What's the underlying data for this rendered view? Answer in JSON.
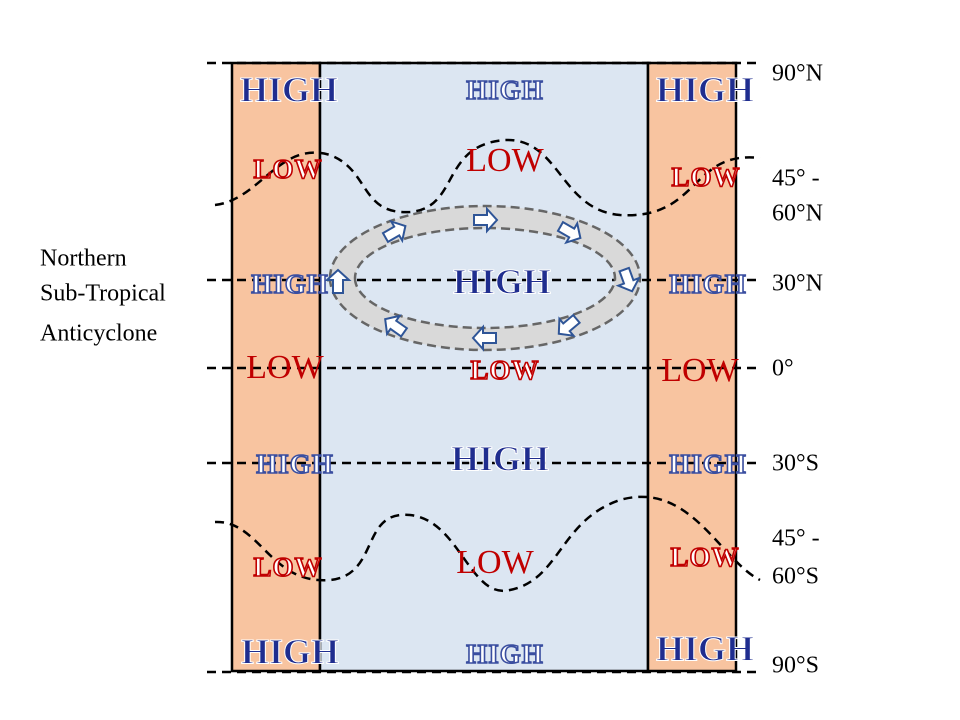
{
  "latitudes": [
    "90°N",
    "45° -",
    "60°N",
    "30°N",
    "0°",
    "30°S",
    "45° -",
    "60°S",
    "90°S"
  ],
  "side_label": [
    "Northern",
    "Sub-Tropical",
    "Anticyclone"
  ],
  "pressure_labels": [
    "HIGH",
    "HIGH",
    "HIGH",
    "LOW",
    "LOW",
    "LOW",
    "HIGH",
    "HIGH",
    "HIGH",
    "LOW",
    "LOW",
    "LOW",
    "HIGH",
    "HIGH",
    "HIGH",
    "LOW",
    "LOW",
    "LOW",
    "HIGH",
    "HIGH",
    "HIGH"
  ]
}
